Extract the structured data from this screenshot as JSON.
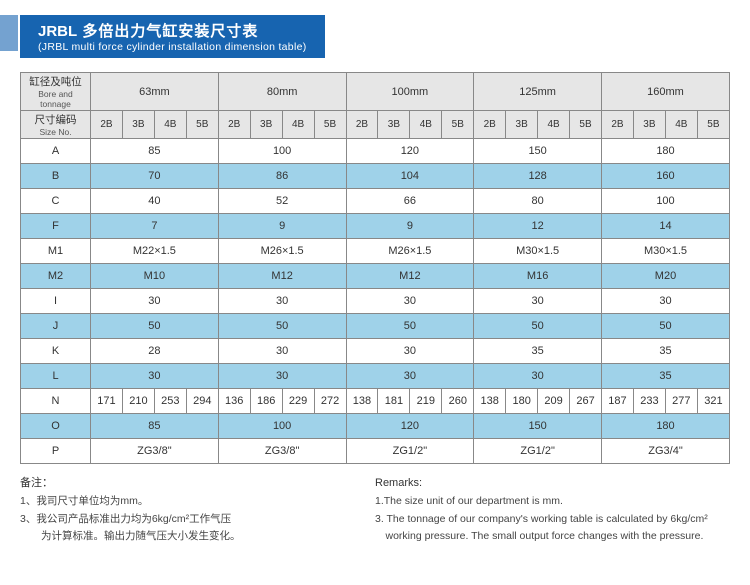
{
  "banner": {
    "zh_code": "JRBL",
    "zh_rest": "多倍出力气缸安装尺寸表",
    "en": "(JRBL multi force cylinder installation dimension table)"
  },
  "head": {
    "bore_zh": "缸径及吨位",
    "bore_en": "Bore and tonnage",
    "size_zh": "尺寸编码",
    "size_en": "Size No.",
    "sizes": [
      "63mm",
      "80mm",
      "100mm",
      "125mm",
      "160mm"
    ],
    "subs": [
      "2B",
      "3B",
      "4B",
      "5B"
    ]
  },
  "rows": [
    {
      "k": "A",
      "v": [
        "85",
        "100",
        "120",
        "150",
        "180"
      ]
    },
    {
      "k": "B",
      "v": [
        "70",
        "86",
        "104",
        "128",
        "160"
      ],
      "alt": true
    },
    {
      "k": "C",
      "v": [
        "40",
        "52",
        "66",
        "80",
        "100"
      ]
    },
    {
      "k": "F",
      "v": [
        "7",
        "9",
        "9",
        "12",
        "14"
      ],
      "alt": true
    },
    {
      "k": "M1",
      "v": [
        "M22×1.5",
        "M26×1.5",
        "M26×1.5",
        "M30×1.5",
        "M30×1.5"
      ]
    },
    {
      "k": "M2",
      "v": [
        "M10",
        "M12",
        "M12",
        "M16",
        "M20"
      ],
      "alt": true
    },
    {
      "k": "I",
      "v": [
        "30",
        "30",
        "30",
        "30",
        "30"
      ]
    },
    {
      "k": "J",
      "v": [
        "50",
        "50",
        "50",
        "50",
        "50"
      ],
      "alt": true
    },
    {
      "k": "K",
      "v": [
        "28",
        "30",
        "30",
        "35",
        "35"
      ]
    },
    {
      "k": "L",
      "v": [
        "30",
        "30",
        "30",
        "30",
        "35"
      ],
      "alt": true
    },
    {
      "k": "N",
      "split": [
        [
          "171",
          "210",
          "253",
          "294"
        ],
        [
          "136",
          "186",
          "229",
          "272"
        ],
        [
          "138",
          "181",
          "219",
          "260"
        ],
        [
          "138",
          "180",
          "209",
          "267"
        ],
        [
          "187",
          "233",
          "277",
          "321"
        ]
      ]
    },
    {
      "k": "O",
      "v": [
        "85",
        "100",
        "120",
        "150",
        "180"
      ],
      "alt": true
    },
    {
      "k": "P",
      "v": [
        "ZG3/8\"",
        "ZG3/8\"",
        "ZG1/2\"",
        "ZG1/2\"",
        "ZG3/4\""
      ]
    }
  ],
  "notes_left": {
    "title": "备注：",
    "l1": "1、我司尺寸单位均为mm。",
    "l2": "3、我公司产品标准出力均为6kg/cm²工作气压",
    "l3": "　　为计算标准。输出力随气压大小发生变化。"
  },
  "notes_right": {
    "title": "Remarks:",
    "l1": "1.The size unit of our department is mm.",
    "l2": "3. The tonnage of our company's working table is calculated by 6kg/cm²",
    "l3": "　working pressure. The small output force changes with the pressure."
  }
}
